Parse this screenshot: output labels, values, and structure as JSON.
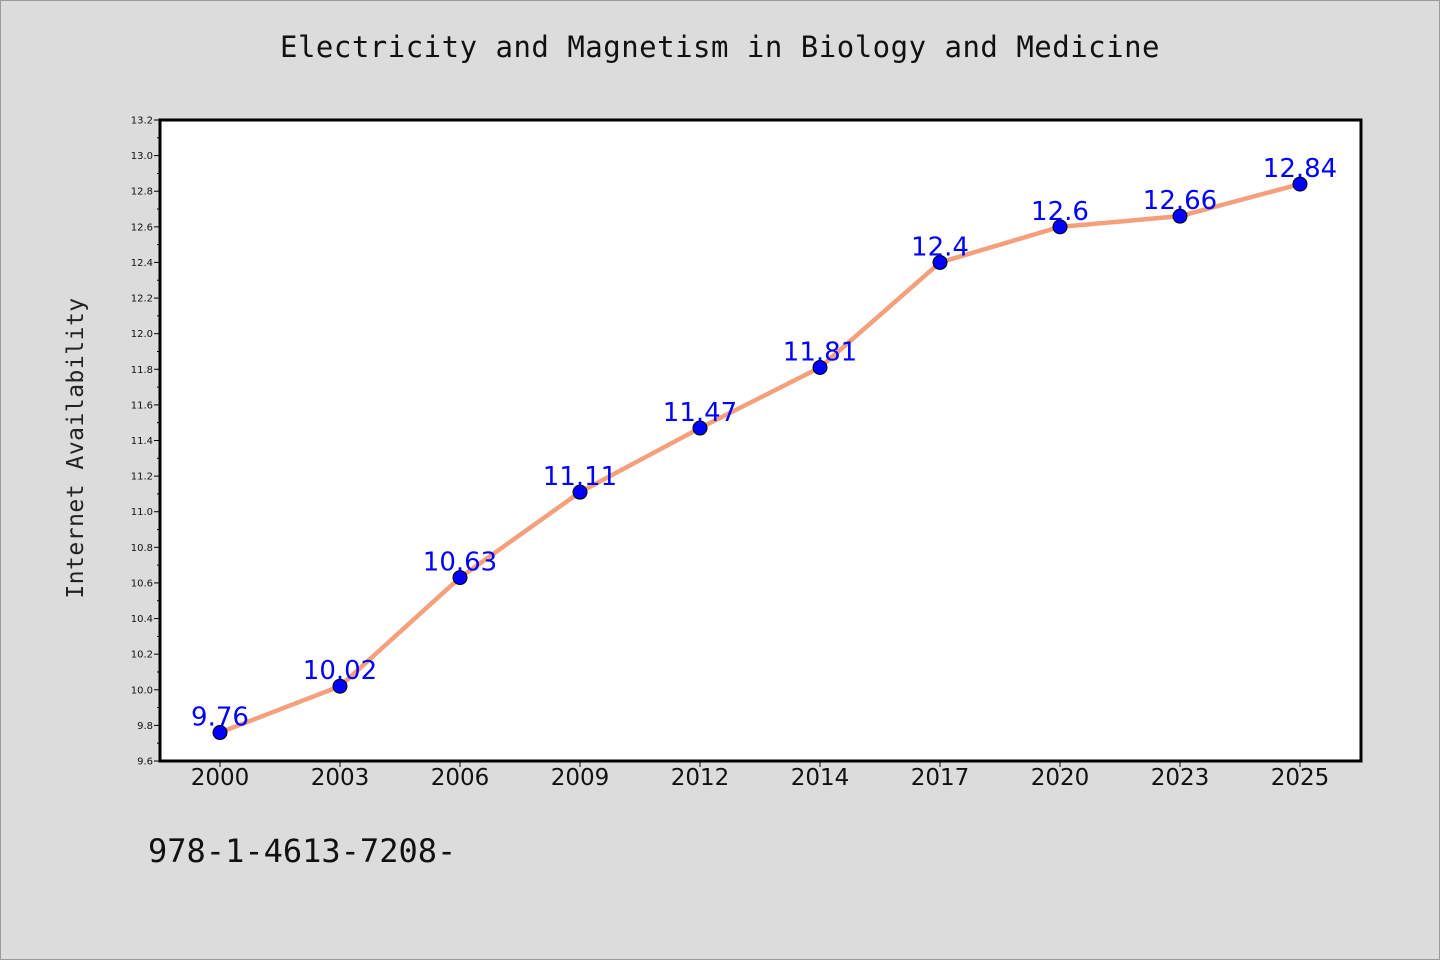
{
  "chart_data": {
    "type": "line",
    "title": "Electricity and Magnetism in Biology and Medicine",
    "xlabel": "",
    "ylabel": "Internet Availability",
    "categories": [
      "2000",
      "2003",
      "2006",
      "2009",
      "2012",
      "2014",
      "2017",
      "2020",
      "2023",
      "2025"
    ],
    "series": [
      {
        "values": [
          9.76,
          10.02,
          10.63,
          11.11,
          11.47,
          11.81,
          12.4,
          12.6,
          12.66,
          12.84
        ],
        "line_color": "#f4a07c",
        "marker_color": "#0000ff",
        "label_color": "#0000ff"
      }
    ],
    "data_labels": [
      "9.76",
      "10.02",
      "10.63",
      "11.11",
      "11.47",
      "11.81",
      "12.4",
      "12.6",
      "12.66",
      "12.84"
    ],
    "ylim": [
      9.6,
      13.2
    ],
    "yticks": [
      "9.6",
      "9.8",
      "10.0",
      "10.2",
      "10.4",
      "10.6",
      "10.8",
      "11.0",
      "11.2",
      "11.4",
      "11.6",
      "11.8",
      "12.0",
      "12.2",
      "12.4",
      "12.6",
      "12.8",
      "13.0",
      "13.2"
    ],
    "grid": false,
    "legend": "none"
  },
  "footer_text": "978-1-4613-7208-",
  "colors": {
    "background": "#dcdcdc",
    "plot_background": "#ffffff",
    "line": "#f4a07c",
    "marker": "#0000ff",
    "data_label": "#0000ff"
  }
}
